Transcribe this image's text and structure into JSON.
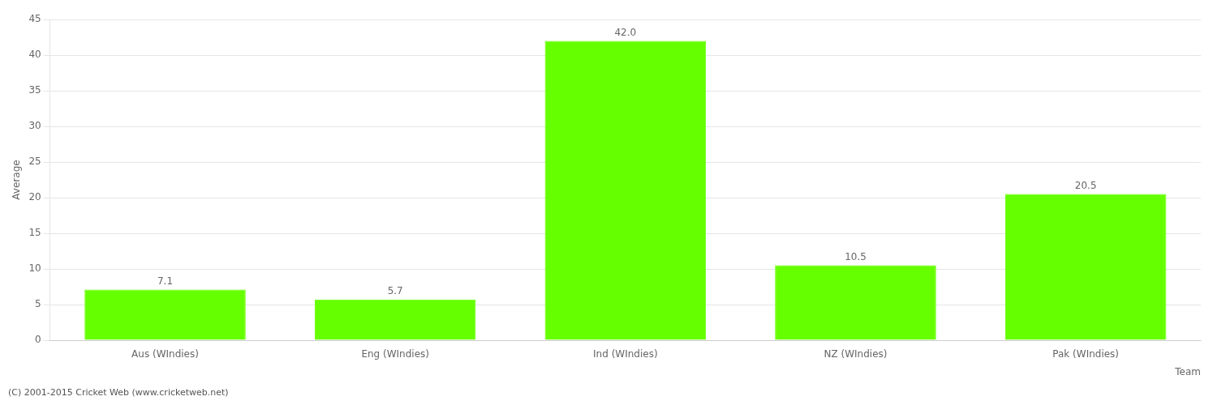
{
  "chart_data": {
    "type": "bar",
    "categories": [
      "Aus (WIndies)",
      "Eng (WIndies)",
      "Ind (WIndies)",
      "NZ (WIndies)",
      "Pak (WIndies)"
    ],
    "values": [
      7.1,
      5.7,
      42.0,
      10.5,
      20.5
    ],
    "value_labels": [
      "7.1",
      "5.7",
      "42.0",
      "10.5",
      "20.5"
    ],
    "data_labels": true,
    "color": "#66ff00",
    "xlabel": "Team",
    "ylabel": "Average",
    "ylim": [
      0,
      45
    ],
    "yticks": [
      0,
      5,
      10,
      15,
      20,
      25,
      30,
      35,
      40,
      45
    ],
    "grid": true,
    "annotations": [
      "(C) 2001-2015 Cricket Web (www.cricketweb.net)"
    ]
  }
}
